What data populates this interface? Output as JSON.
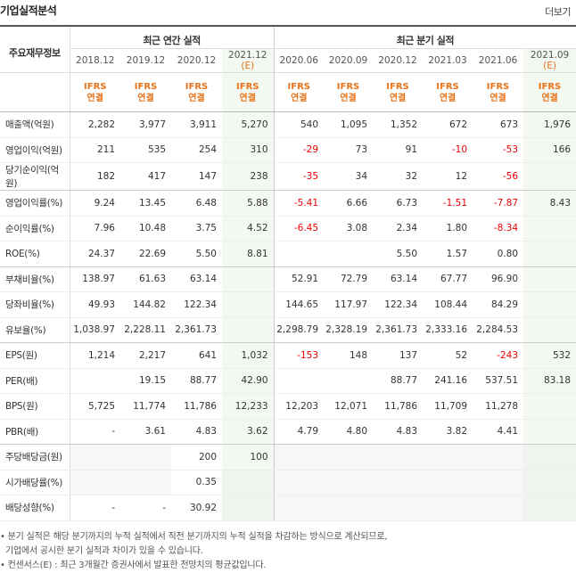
{
  "header": {
    "title": "기업실적분석",
    "more": "더보기"
  },
  "table": {
    "label_header": "주요재무정보",
    "group_annual": "최근 연간 실적",
    "group_quarter": "최근 분기 실적",
    "annual_periods": [
      {
        "label": "2018.12",
        "est": ""
      },
      {
        "label": "2019.12",
        "est": ""
      },
      {
        "label": "2020.12",
        "est": ""
      },
      {
        "label": "2021.12",
        "est": "(E)"
      }
    ],
    "quarter_periods": [
      {
        "label": "2020.06",
        "est": ""
      },
      {
        "label": "2020.09",
        "est": ""
      },
      {
        "label": "2020.12",
        "est": ""
      },
      {
        "label": "2021.03",
        "est": ""
      },
      {
        "label": "2021.06",
        "est": ""
      },
      {
        "label": "2021.09",
        "est": "(E)"
      }
    ],
    "ifrs_line1": "IFRS",
    "ifrs_line2": "연결",
    "rows": [
      {
        "label": "매출액(억원)",
        "values": [
          "2,282",
          "3,977",
          "3,911",
          "5,270",
          "540",
          "1,095",
          "1,352",
          "672",
          "673",
          "1,976"
        ]
      },
      {
        "label": "영업이익(억원)",
        "values": [
          "211",
          "535",
          "254",
          "310",
          "-29",
          "73",
          "91",
          "-10",
          "-53",
          "166"
        ]
      },
      {
        "label": "당기순이익(억원)",
        "values": [
          "182",
          "417",
          "147",
          "238",
          "-35",
          "34",
          "32",
          "12",
          "-56",
          ""
        ]
      },
      {
        "label": "영업이익률(%)",
        "values": [
          "9.24",
          "13.45",
          "6.48",
          "5.88",
          "-5.41",
          "6.66",
          "6.73",
          "-1.51",
          "-7.87",
          "8.43"
        ]
      },
      {
        "label": "순이익률(%)",
        "values": [
          "7.96",
          "10.48",
          "3.75",
          "4.52",
          "-6.45",
          "3.08",
          "2.34",
          "1.80",
          "-8.34",
          ""
        ]
      },
      {
        "label": "ROE(%)",
        "values": [
          "24.37",
          "22.69",
          "5.50",
          "8.81",
          "",
          "",
          "5.50",
          "1.57",
          "0.80",
          ""
        ]
      },
      {
        "label": "부채비율(%)",
        "values": [
          "138.97",
          "61.63",
          "63.14",
          "",
          "52.91",
          "72.79",
          "63.14",
          "67.77",
          "96.90",
          ""
        ]
      },
      {
        "label": "당좌비율(%)",
        "values": [
          "49.93",
          "144.82",
          "122.34",
          "",
          "144.65",
          "117.97",
          "122.34",
          "108.44",
          "84.29",
          ""
        ]
      },
      {
        "label": "유보율(%)",
        "values": [
          "1,038.97",
          "2,228.11",
          "2,361.73",
          "",
          "2,298.79",
          "2,328.19",
          "2,361.73",
          "2,333.16",
          "2,284.53",
          ""
        ]
      },
      {
        "label": "EPS(원)",
        "values": [
          "1,214",
          "2,217",
          "641",
          "1,032",
          "-153",
          "148",
          "137",
          "52",
          "-243",
          "532"
        ]
      },
      {
        "label": "PER(배)",
        "values": [
          "",
          "19.15",
          "88.77",
          "42.90",
          "",
          "",
          "88.77",
          "241.16",
          "537.51",
          "83.18"
        ]
      },
      {
        "label": "BPS(원)",
        "values": [
          "5,725",
          "11,774",
          "11,786",
          "12,233",
          "12,203",
          "12,071",
          "11,786",
          "11,709",
          "11,278",
          ""
        ]
      },
      {
        "label": "PBR(배)",
        "values": [
          "-",
          "3.61",
          "4.83",
          "3.62",
          "4.79",
          "4.80",
          "4.83",
          "3.82",
          "4.41",
          ""
        ]
      },
      {
        "label": "주당배당금(원)",
        "values": [
          "",
          "",
          "200",
          "100",
          "",
          "",
          "",
          "",
          "",
          ""
        ]
      },
      {
        "label": "시가배당률(%)",
        "values": [
          "",
          "",
          "0.35",
          "",
          "",
          "",
          "",
          "",
          "",
          ""
        ]
      },
      {
        "label": "배당성향(%)",
        "values": [
          "-",
          "-",
          "30.92",
          "",
          "",
          "",
          "",
          "",
          "",
          ""
        ]
      }
    ]
  },
  "notes": [
    "• 분기 실적은 해당 분기까지의 누적 실적에서 직전 분기까지의 누적 실적을 차감하는 방식으로 계산되므로,",
    "  기업에서 공시한 분기 실적과 차이가 있을 수 있습니다.",
    "• 컨센서스(E) : 최근 3개월간 증권사에서 발표한 전망치의 평균값입니다."
  ]
}
